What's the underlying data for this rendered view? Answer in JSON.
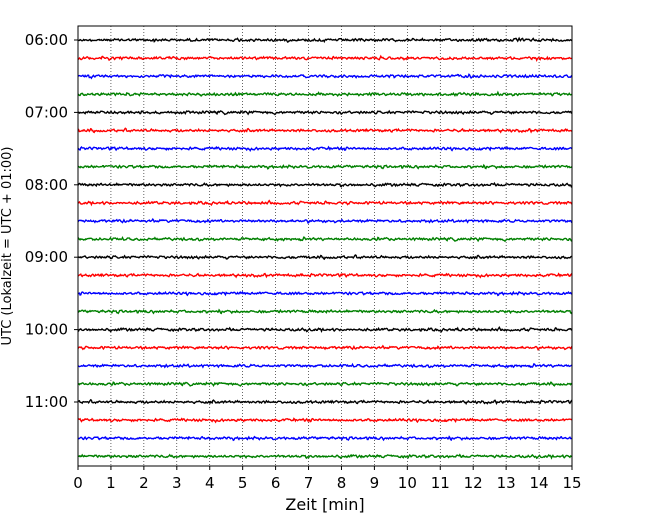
{
  "chart_data": {
    "type": "line",
    "title": "",
    "xlabel": "Zeit  [min]",
    "ylabel": "UTC (Lokalzeit = UTC + 01:00)",
    "xlim": [
      0,
      15
    ],
    "x_ticks": [
      "0",
      "1",
      "2",
      "3",
      "4",
      "5",
      "6",
      "7",
      "8",
      "9",
      "10",
      "11",
      "12",
      "13",
      "14",
      "15"
    ],
    "y_tick_labels": [
      "06:00",
      "07:00",
      "08:00",
      "09:00",
      "10:00",
      "11:00"
    ],
    "vertical_grid": "dotted",
    "minutes_per_trace": 15,
    "trace_start_times": [
      "06:00",
      "06:15",
      "06:30",
      "06:45",
      "07:00",
      "07:15",
      "07:30",
      "07:45",
      "08:00",
      "08:15",
      "08:30",
      "08:45",
      "09:00",
      "09:15",
      "09:30",
      "09:45",
      "10:00",
      "10:15",
      "10:30",
      "10:45",
      "11:00",
      "11:15",
      "11:30",
      "11:45"
    ],
    "trace_colors": [
      "#000000",
      "#ff0000",
      "#0000ff",
      "#008000"
    ]
  }
}
